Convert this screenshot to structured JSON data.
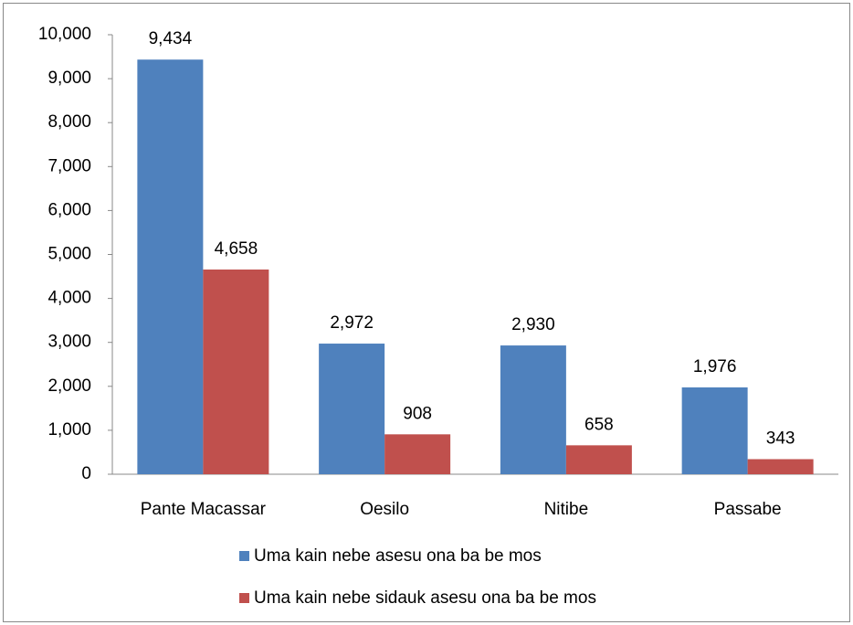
{
  "chart_data": {
    "type": "bar",
    "categories": [
      "Pante Macassar",
      "Oesilo",
      "Nitibe",
      "Passabe"
    ],
    "series": [
      {
        "name": "Uma kain nebe asesu ona ba be mos",
        "color": "#4f81bd",
        "values": [
          9434,
          2972,
          2930,
          1976
        ],
        "value_labels": [
          "9,434",
          "2,972",
          "2,930",
          "1,976"
        ]
      },
      {
        "name": "Uma kain nebe sidauk asesu ona ba be mos",
        "color": "#c0504d",
        "values": [
          4658,
          908,
          658,
          343
        ],
        "value_labels": [
          "4,658",
          "908",
          "658",
          "343"
        ]
      }
    ],
    "ylim": [
      0,
      10000
    ],
    "yticks": [
      0,
      {
        "value": 1000,
        "label": "1,000"
      },
      {
        "value": 2000,
        "label": "2,000"
      },
      {
        "value": 3000,
        "label": "3,000"
      },
      {
        "value": 4000,
        "label": "4,000"
      },
      {
        "value": 5000,
        "label": "5,000"
      },
      {
        "value": 6000,
        "label": "6,000"
      },
      {
        "value": 7000,
        "label": "7,000"
      },
      {
        "value": 8000,
        "label": "8,000"
      },
      {
        "value": 9000,
        "label": "9,000"
      },
      {
        "value": 10000,
        "label": "10,000"
      }
    ],
    "grid": false,
    "legend": "bottom"
  }
}
